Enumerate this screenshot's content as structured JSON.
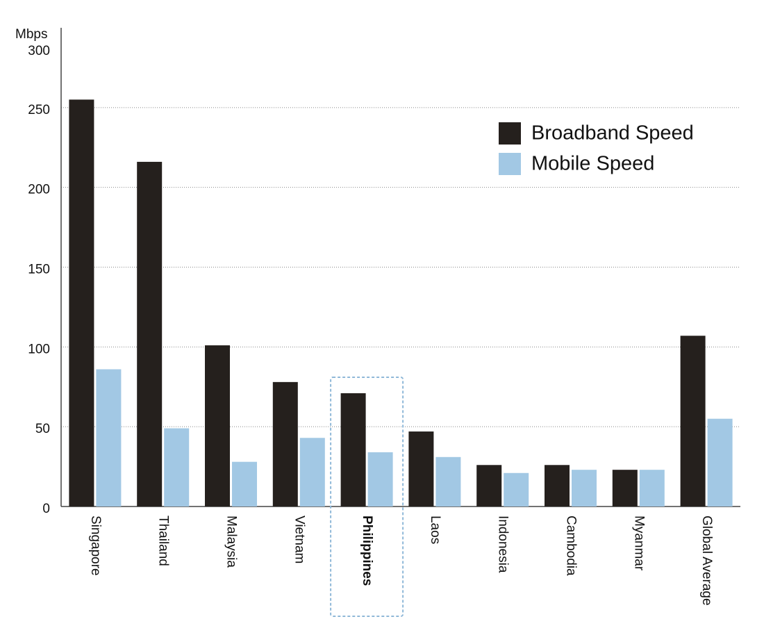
{
  "chart_data": {
    "type": "bar",
    "y_unit": "Mbps",
    "categories": [
      "Singapore",
      "Thailand",
      "Malaysia",
      "Vietnam",
      "Philippines",
      "Laos",
      "Indonesia",
      "Cambodia",
      "Myanmar",
      "Global Average"
    ],
    "series": [
      {
        "name": "Broadband Speed",
        "color": "#25201d",
        "values": [
          255,
          216,
          101,
          78,
          71,
          47,
          26,
          26,
          23,
          107
        ]
      },
      {
        "name": "Mobile Speed",
        "color": "#a2c8e4",
        "values": [
          86,
          49,
          28,
          43,
          34,
          31,
          21,
          23,
          23,
          55
        ]
      }
    ],
    "ylim": [
      0,
      300
    ],
    "yticks": [
      0,
      50,
      100,
      150,
      200,
      250,
      300
    ],
    "grid": true,
    "legend": "upper right",
    "highlight_category": "Philippines",
    "highlight_color": "#8fb8d8"
  }
}
